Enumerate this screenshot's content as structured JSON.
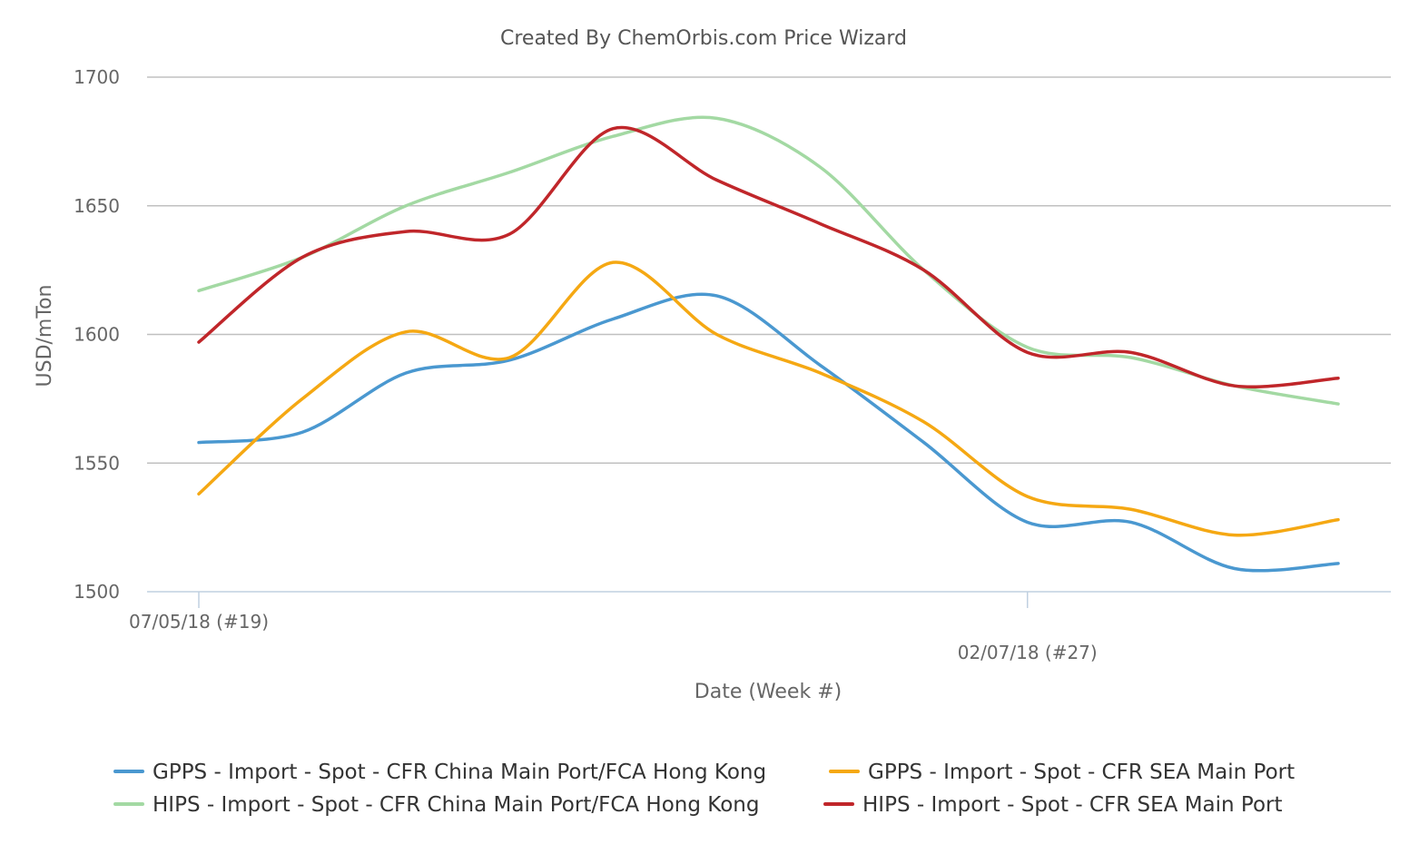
{
  "chart_data": {
    "type": "line",
    "title": "Created By ChemOrbis.com Price Wizard",
    "xlabel": "Date (Week #)",
    "ylabel": "USD/mTon",
    "ylim": [
      1500,
      1700
    ],
    "yticks": [
      1500,
      1550,
      1600,
      1650,
      1700
    ],
    "weeks": [
      19,
      20,
      21,
      22,
      23,
      24,
      25,
      26,
      27,
      28,
      29,
      30
    ],
    "xtick_labels": [
      {
        "week": 19,
        "label": "07/05/18 (#19)"
      },
      {
        "week": 27,
        "label": "02/07/18 (#27)"
      }
    ],
    "grid": true,
    "legend_position": "bottom",
    "series": [
      {
        "name": "GPPS - Import - Spot - CFR China Main Port/FCA Hong Kong",
        "color": "#4a98d0",
        "values": [
          1558,
          1562,
          1585,
          1590,
          1606,
          1615,
          1588,
          1558,
          1527,
          1527,
          1509,
          1511
        ]
      },
      {
        "name": "GPPS - Import - Spot - CFR SEA Main Port",
        "color": "#f5a813",
        "values": [
          1538,
          1575,
          1601,
          1591,
          1628,
          1600,
          1585,
          1566,
          1537,
          1532,
          1522,
          1528
        ]
      },
      {
        "name": "HIPS - Import - Spot - CFR China Main Port/FCA Hong Kong",
        "color": "#a3d9a3",
        "values": [
          1617,
          1630,
          1650,
          1663,
          1677,
          1684,
          1665,
          1625,
          1595,
          1591,
          1580,
          1573
        ]
      },
      {
        "name": "HIPS - Import - Spot - CFR SEA Main Port",
        "color": "#c0262a",
        "values": [
          1597,
          1630,
          1640,
          1639,
          1680,
          1660,
          1643,
          1625,
          1593,
          1593,
          1580,
          1583
        ]
      }
    ]
  }
}
